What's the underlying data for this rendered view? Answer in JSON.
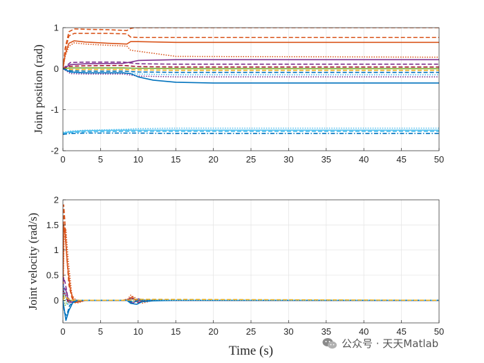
{
  "chart_data": [
    {
      "type": "line",
      "ylabel": "Joint position (rad)",
      "xlabel": "",
      "xlim": [
        0,
        50
      ],
      "ylim": [
        -2,
        1
      ],
      "xticks": [
        "0",
        "5",
        "10",
        "15",
        "20",
        "25",
        "30",
        "35",
        "40",
        "45",
        "50"
      ],
      "yticks": [
        "-2",
        "-1",
        "0",
        "1"
      ],
      "grid": true,
      "series": [
        {
          "color": "#D95319",
          "style": "dashed",
          "x": [
            0,
            0.3,
            0.8,
            1.5,
            3,
            6,
            8.5,
            9,
            9.5,
            50
          ],
          "y": [
            0,
            0.5,
            0.9,
            0.97,
            0.96,
            0.95,
            0.93,
            0.98,
            1.0,
            1.0
          ]
        },
        {
          "color": "#D95319",
          "style": "dashed",
          "x": [
            0,
            0.3,
            0.8,
            1.5,
            3,
            6,
            8.5,
            9,
            10,
            50
          ],
          "y": [
            0,
            0.45,
            0.8,
            0.86,
            0.86,
            0.86,
            0.85,
            0.77,
            0.76,
            0.76
          ]
        },
        {
          "color": "#D95319",
          "style": "solid",
          "x": [
            0,
            0.3,
            0.8,
            1.5,
            3,
            6,
            8.5,
            9,
            10,
            15,
            50
          ],
          "y": [
            0,
            0.35,
            0.62,
            0.68,
            0.65,
            0.62,
            0.6,
            0.66,
            0.66,
            0.64,
            0.64
          ]
        },
        {
          "color": "#D95319",
          "style": "dotted",
          "x": [
            0,
            0.3,
            0.8,
            1.5,
            3,
            6,
            8.5,
            9,
            11,
            15,
            50
          ],
          "y": [
            0,
            0.3,
            0.55,
            0.63,
            0.6,
            0.57,
            0.55,
            0.45,
            0.4,
            0.3,
            0.28
          ]
        },
        {
          "color": "#7E2F8E",
          "style": "solid",
          "x": [
            0,
            1,
            3,
            8,
            9,
            10,
            15,
            50
          ],
          "y": [
            0,
            0.1,
            0.12,
            0.13,
            0.16,
            0.2,
            0.22,
            0.22
          ]
        },
        {
          "color": "#7E2F8E",
          "style": "dashed",
          "x": [
            0,
            1,
            3,
            8,
            10,
            15,
            50
          ],
          "y": [
            0,
            0.15,
            0.16,
            0.16,
            0.12,
            0.11,
            0.11
          ]
        },
        {
          "color": "#A2142F",
          "style": "dashed",
          "x": [
            0,
            1,
            3,
            8,
            10,
            15,
            50
          ],
          "y": [
            0,
            0.06,
            0.07,
            0.08,
            0.05,
            0.04,
            0.04
          ]
        },
        {
          "color": "#77AC30",
          "style": "solid",
          "x": [
            0,
            1,
            3,
            8,
            10,
            15,
            50
          ],
          "y": [
            0,
            0.02,
            0.02,
            0.02,
            0.01,
            0.0,
            0.0
          ]
        },
        {
          "color": "#EDB120",
          "style": "dashed",
          "x": [
            0,
            1,
            3,
            8,
            10,
            15,
            50
          ],
          "y": [
            0,
            -0.02,
            -0.02,
            -0.02,
            -0.03,
            -0.04,
            -0.04
          ]
        },
        {
          "color": "#0072BD",
          "style": "dashed",
          "x": [
            0,
            1,
            3,
            8,
            10,
            15,
            50
          ],
          "y": [
            0,
            -0.05,
            -0.06,
            -0.06,
            -0.08,
            -0.09,
            -0.09
          ]
        },
        {
          "color": "#4DBEEE",
          "style": "dotted",
          "x": [
            0,
            1,
            3,
            8,
            10,
            15,
            50
          ],
          "y": [
            0,
            -0.1,
            -0.11,
            -0.11,
            -0.13,
            -0.15,
            -0.15
          ]
        },
        {
          "color": "#7E2F8E",
          "style": "dotted",
          "x": [
            0,
            1,
            3,
            8,
            10,
            15,
            50
          ],
          "y": [
            0,
            -0.12,
            -0.13,
            -0.13,
            -0.18,
            -0.2,
            -0.2
          ]
        },
        {
          "color": "#0072BD",
          "style": "solid",
          "x": [
            0,
            1,
            3,
            8,
            9,
            10,
            12,
            15,
            20,
            50
          ],
          "y": [
            0,
            -0.08,
            -0.1,
            -0.1,
            -0.12,
            -0.2,
            -0.28,
            -0.33,
            -0.35,
            -0.35
          ]
        },
        {
          "color": "#4DBEEE",
          "style": "dotted",
          "x": [
            0,
            1,
            3,
            8,
            10,
            15,
            50
          ],
          "y": [
            -1.55,
            -1.52,
            -1.5,
            -1.48,
            -1.46,
            -1.45,
            -1.45
          ]
        },
        {
          "color": "#4DBEEE",
          "style": "solid",
          "x": [
            0,
            1,
            3,
            8,
            10,
            15,
            50
          ],
          "y": [
            -1.57,
            -1.54,
            -1.51,
            -1.5,
            -1.5,
            -1.5,
            -1.5
          ]
        },
        {
          "color": "#4DBEEE",
          "style": "dashed",
          "x": [
            0,
            1,
            3,
            8,
            10,
            15,
            50
          ],
          "y": [
            -1.58,
            -1.56,
            -1.54,
            -1.53,
            -1.53,
            -1.53,
            -1.53
          ]
        },
        {
          "color": "#0072BD",
          "style": "dashdot",
          "x": [
            0,
            1,
            3,
            8,
            10,
            15,
            50
          ],
          "y": [
            -1.6,
            -1.58,
            -1.57,
            -1.57,
            -1.57,
            -1.58,
            -1.58
          ]
        }
      ]
    },
    {
      "type": "line",
      "ylabel": "Joint velocity (rad/s)",
      "xlabel": "Time (s)",
      "xlim": [
        0,
        50
      ],
      "ylim": [
        -0.45,
        2
      ],
      "xticks": [
        "0",
        "5",
        "10",
        "15",
        "20",
        "25",
        "30",
        "35",
        "40",
        "45",
        "50"
      ],
      "yticks": [
        "0",
        "0.5",
        "1",
        "1.5",
        "2"
      ],
      "grid": true,
      "series": [
        {
          "color": "#D95319",
          "style": "dashed",
          "x": [
            0,
            0.1,
            0.25,
            0.5,
            0.8,
            1.2,
            1.6,
            2.2,
            3,
            5,
            8,
            9,
            9.6,
            10.5,
            12,
            50
          ],
          "y": [
            0,
            1.9,
            1.6,
            0.9,
            0.3,
            0.05,
            -0.05,
            -0.02,
            0,
            0,
            0,
            0.04,
            0.02,
            -0.02,
            0,
            0
          ]
        },
        {
          "color": "#D95319",
          "style": "solid",
          "x": [
            0,
            0.1,
            0.3,
            0.6,
            1,
            1.5,
            2.2,
            3,
            5,
            8.5,
            9.2,
            10,
            11,
            50
          ],
          "y": [
            0,
            1.5,
            1.3,
            0.7,
            0.2,
            -0.04,
            -0.03,
            0,
            0,
            0,
            0.07,
            -0.05,
            0,
            0
          ]
        },
        {
          "color": "#D95319",
          "style": "dotted",
          "x": [
            0,
            0.15,
            0.4,
            0.7,
            1.2,
            2,
            3,
            8.5,
            9,
            9.6,
            10.5,
            12,
            50
          ],
          "y": [
            0,
            1.2,
            1.4,
            0.8,
            0.1,
            -0.05,
            0,
            0,
            0.1,
            0.05,
            -0.06,
            0,
            0
          ]
        },
        {
          "color": "#7E2F8E",
          "style": "dashed",
          "x": [
            0,
            0.1,
            0.3,
            0.6,
            1,
            1.5,
            2.5,
            8.5,
            9.2,
            10,
            11,
            50
          ],
          "y": [
            0,
            0.45,
            0.35,
            0.1,
            -0.05,
            -0.02,
            0,
            0,
            0.05,
            -0.04,
            0,
            0
          ]
        },
        {
          "color": "#7E2F8E",
          "style": "solid",
          "x": [
            0,
            0.15,
            0.4,
            0.8,
            1.3,
            2,
            8.5,
            9.3,
            10,
            11,
            50
          ],
          "y": [
            0,
            0.25,
            0.2,
            -0.05,
            -0.03,
            0,
            0,
            -0.06,
            0.03,
            0,
            0
          ]
        },
        {
          "color": "#A2142F",
          "style": "dashed",
          "x": [
            0,
            0.1,
            0.3,
            0.7,
            1.2,
            2,
            8.5,
            9.2,
            10,
            50
          ],
          "y": [
            0,
            0.2,
            0.12,
            -0.04,
            0,
            0,
            0,
            0.03,
            0,
            0
          ]
        },
        {
          "color": "#77AC30",
          "style": "dotted",
          "x": [
            0,
            0.1,
            0.3,
            0.6,
            1,
            2,
            8.5,
            9.2,
            10,
            50
          ],
          "y": [
            0,
            0.12,
            -0.1,
            -0.05,
            0,
            0,
            0,
            -0.02,
            0,
            0
          ]
        },
        {
          "color": "#0072BD",
          "style": "solid",
          "x": [
            0,
            0.15,
            0.4,
            0.8,
            1.3,
            2,
            8.5,
            9,
            9.8,
            10.5,
            12,
            15,
            50
          ],
          "y": [
            0,
            -0.15,
            -0.4,
            -0.2,
            -0.05,
            0,
            0,
            -0.06,
            -0.08,
            -0.03,
            -0.01,
            0,
            0
          ]
        },
        {
          "color": "#0072BD",
          "style": "dashed",
          "x": [
            0,
            0.2,
            0.5,
            0.9,
            1.5,
            2.5,
            8.5,
            9.4,
            10.2,
            50
          ],
          "y": [
            0,
            -0.25,
            -0.3,
            -0.1,
            -0.02,
            0,
            0,
            -0.04,
            0,
            0
          ]
        },
        {
          "color": "#4DBEEE",
          "style": "dotted",
          "x": [
            0,
            0.1,
            0.3,
            0.6,
            1,
            1.6,
            2.5,
            8.5,
            9.5,
            10.5,
            12,
            14.5,
            50
          ],
          "y": [
            0,
            0.3,
            0.1,
            -0.1,
            -0.02,
            0.01,
            0,
            0,
            0.03,
            0.01,
            0.01,
            0,
            0
          ]
        },
        {
          "color": "#EDB120",
          "style": "dashed",
          "x": [
            0,
            0.2,
            0.5,
            1,
            1.8,
            8.5,
            9.5,
            50
          ],
          "y": [
            0,
            0.08,
            0.05,
            0,
            0,
            0,
            0.02,
            0
          ]
        }
      ]
    }
  ],
  "watermark": {
    "text": "公众号 · 天天Matlab",
    "icon": "wechat-icon"
  }
}
